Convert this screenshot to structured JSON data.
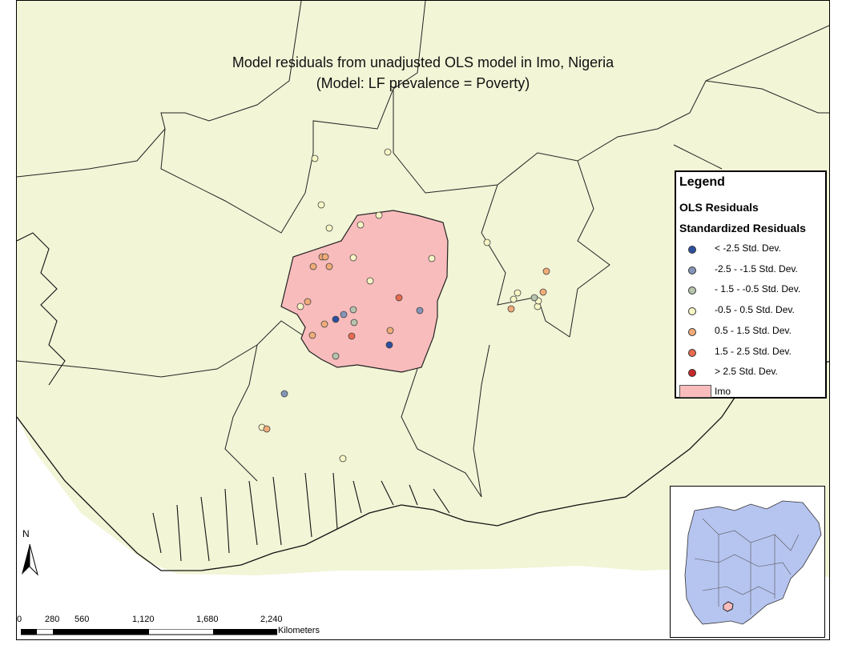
{
  "title": {
    "line1": "Model residuals from unadjusted OLS model in Imo, Nigeria",
    "line2": "(Model: LF prevalence = Poverty)"
  },
  "colors": {
    "land": "#f2f5d6",
    "region": "#f9bcbc",
    "inset_fill": "#b6c4f0",
    "classes": [
      "#2c4f9e",
      "#8595b8",
      "#b6c3ad",
      "#f7f6c5",
      "#f0ac78",
      "#e86a4f",
      "#c82828"
    ]
  },
  "legend": {
    "title": "Legend",
    "layer": "OLS Residuals",
    "field": "Standardized Residuals",
    "classes": [
      "< -2.5 Std. Dev.",
      "-2.5 - -1.5 Std. Dev.",
      "- 1.5 - -0.5 Std. Dev.",
      "-0.5 - 0.5 Std. Dev.",
      "0.5 - 1.5 Std. Dev.",
      "1.5 - 2.5 Std. Dev.",
      "> 2.5 Std. Dev."
    ],
    "region_label": "Imo"
  },
  "north_arrow": {
    "label": "N"
  },
  "scale_bar": {
    "ticks": [
      "0",
      "280",
      "560",
      "1,120",
      "1,680",
      "2,240"
    ],
    "unit": "Kilometers"
  },
  "points": [
    {
      "class": 3
    },
    {
      "class": 3
    },
    {
      "class": 3
    },
    {
      "class": 3
    },
    {
      "class": 3
    },
    {
      "class": 3
    },
    {
      "class": 4
    },
    {
      "class": 4
    },
    {
      "class": 4
    },
    {
      "class": 4
    },
    {
      "class": 3
    },
    {
      "class": 3
    },
    {
      "class": 3
    },
    {
      "class": 3
    },
    {
      "class": 3
    },
    {
      "class": 4
    },
    {
      "class": 5
    },
    {
      "class": 2
    },
    {
      "class": 0
    },
    {
      "class": 1
    },
    {
      "class": 2
    },
    {
      "class": 4
    },
    {
      "class": 4
    },
    {
      "class": 5
    },
    {
      "class": 4
    },
    {
      "class": 0
    },
    {
      "class": 2
    },
    {
      "class": 1
    },
    {
      "class": 4
    },
    {
      "class": 4
    },
    {
      "class": 3
    },
    {
      "class": 3
    },
    {
      "class": 4
    },
    {
      "class": 3
    },
    {
      "class": 3
    },
    {
      "class": 2
    },
    {
      "class": 1
    },
    {
      "class": 3
    },
    {
      "class": 4
    },
    {
      "class": 3
    }
  ]
}
